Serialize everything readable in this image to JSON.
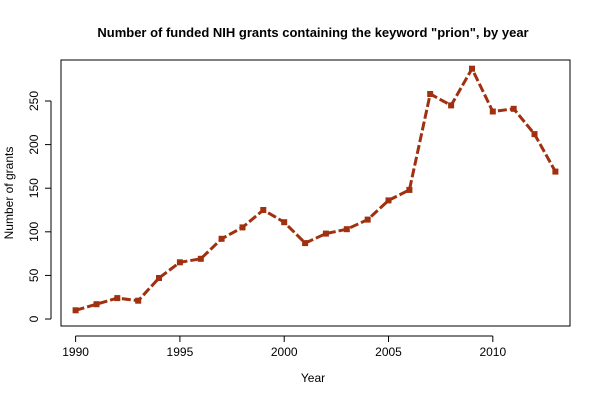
{
  "chart_data": {
    "type": "line",
    "title": "Number of funded NIH grants containing the keyword \"prion\", by year",
    "xlabel": "Year",
    "ylabel": "Number of grants",
    "xlim": [
      1989.3,
      2013.7
    ],
    "ylim": [
      -8,
      297
    ],
    "x_ticks": [
      1990,
      1995,
      2000,
      2005,
      2010
    ],
    "y_ticks": [
      0,
      50,
      100,
      150,
      200,
      250
    ],
    "grid": false,
    "line_style": "dashed",
    "marker": "square",
    "color": "#a0300f",
    "series": [
      {
        "x": [
          1990,
          1991,
          1992,
          1993,
          1994,
          1995,
          1996,
          1997,
          1998,
          1999,
          2000,
          2001,
          2002,
          2003,
          2004,
          2005,
          2006,
          2007,
          2008,
          2009,
          2010,
          2011,
          2012,
          2013
        ],
        "values": [
          10,
          17,
          24,
          21,
          47,
          65,
          69,
          92,
          105,
          125,
          111,
          87,
          98,
          103,
          114,
          136,
          148,
          258,
          245,
          287,
          238,
          241,
          212,
          169
        ]
      }
    ]
  }
}
